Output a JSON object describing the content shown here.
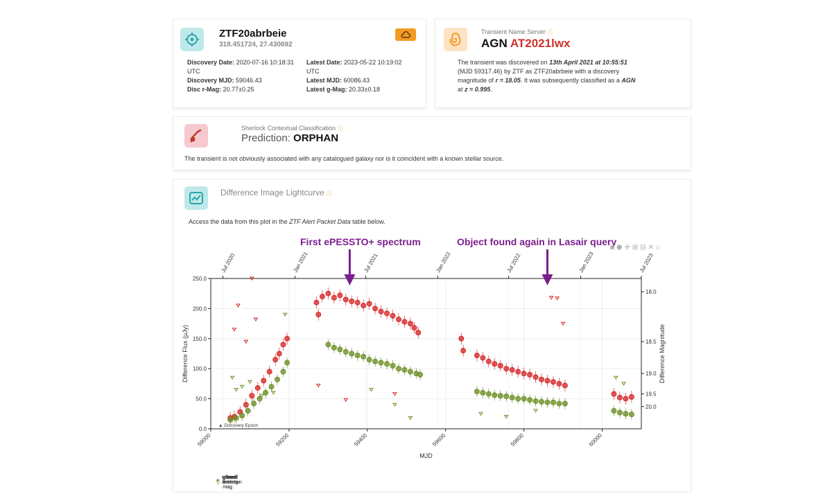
{
  "object": {
    "name": "ZTF20abrbeie",
    "coords": "318.451724, 27.430692",
    "disc_date_label": "Discovery Date:",
    "disc_date": "2020-07-16 10:18:31",
    "disc_date_tz": "UTC",
    "disc_mjd_label": "Discovery MJD:",
    "disc_mjd": "59046.43",
    "disc_mag_label": "Disc r-Mag:",
    "disc_mag": "20.77±0.25",
    "latest_date_label": "Latest Date:",
    "latest_date": "2023-05-22 10:19:02",
    "latest_date_tz": "UTC",
    "latest_mjd_label": "Latest MJD:",
    "latest_mjd": "60086.43",
    "latest_mag_label": "Latest g-Mag:",
    "latest_mag": "20.33±0.18"
  },
  "tns": {
    "header": "Transient Name Server",
    "type": "AGN",
    "name": "AT2021lwx",
    "p1": "The transient was discovered on",
    "date": "13th April 2021 at 10:55:51",
    "p2": "(MJD 59317.46) by ZTF as ZTF20abrbeie with a discovery",
    "p3": "magnitude of",
    "mag": "r = 18.05",
    "p4": ". It was subsequently classified as a",
    "cls": "AGN",
    "p5": "at",
    "z": "z = 0.995",
    "p6": "."
  },
  "sherlock": {
    "header": "Sherlock Contextual Classification",
    "prediction_label": "Prediction:",
    "prediction": "ORPHAN",
    "description": "The transient is not obviously associated with any catalogued galaxy nor is it coincident with a known stellar source."
  },
  "lightcurve": {
    "header": "Difference Image Lightcurve",
    "access_pre": "Access the data from this plot in the",
    "access_em": "ZTF Alert Packet Data",
    "access_post": "table below."
  },
  "annotations": {
    "first": "First ePESSTO+ spectrum",
    "found": "Object found again in Lasair query",
    "first_mjd": 59355,
    "found_mjd": 59860,
    "color": "#7b1e8e"
  },
  "colors": {
    "r": "#d62728",
    "g": "#6b8e23",
    "teal": "#2aa6a9",
    "orange": "#f29b22",
    "pink": "#c0392b"
  },
  "chart_data": {
    "type": "scatter",
    "xlabel": "MJD",
    "ylabel": "Difference Flux (μJy)",
    "y2label": "Difference Magnitude",
    "xlim": [
      59000,
      60100
    ],
    "ylim": [
      0,
      250
    ],
    "x_ticks": [
      59000,
      59200,
      59400,
      59600,
      59800,
      60000
    ],
    "y_ticks": [
      0,
      50,
      100,
      150,
      200,
      250
    ],
    "y_tick_labels": [
      "0.0",
      "50.0",
      "100.0",
      "150.0",
      "200.0",
      "250.0"
    ],
    "y2_ticks": [
      {
        "label": "18.0",
        "flux": 228
      },
      {
        "label": "18.5",
        "flux": 145
      },
      {
        "label": "19.0",
        "flux": 92
      },
      {
        "label": "19.5",
        "flux": 58
      },
      {
        "label": "20.0",
        "flux": 37
      }
    ],
    "date_ticks": [
      {
        "label": "Jul 2020",
        "mjd": 59031
      },
      {
        "label": "Jan 2021",
        "mjd": 59215
      },
      {
        "label": "Jul 2021",
        "mjd": 59396
      },
      {
        "label": "Jan 2022",
        "mjd": 59580
      },
      {
        "label": "Jul 2022",
        "mjd": 59761
      },
      {
        "label": "Jan 2023",
        "mjd": 59945
      },
      {
        "label": "Jul 2023",
        "mjd": 60126
      }
    ],
    "discovery_label": "Discovery Epoch",
    "discovery_mjd": 59046,
    "legend": [
      "r-band limiting mag",
      "r-band detection",
      "g-band limiting mag",
      "g-band detection"
    ],
    "series": [
      {
        "name": "r-band detection",
        "x": [
          59050,
          59060,
          59075,
          59090,
          59105,
          59120,
          59135,
          59150,
          59165,
          59175,
          59185,
          59195,
          59270,
          59275,
          59285,
          59300,
          59315,
          59330,
          59345,
          59360,
          59375,
          59390,
          59405,
          59420,
          59435,
          59450,
          59465,
          59480,
          59495,
          59510,
          59520,
          59530,
          59640,
          59645,
          59680,
          59695,
          59710,
          59725,
          59740,
          59755,
          59770,
          59785,
          59800,
          59815,
          59830,
          59845,
          59860,
          59875,
          59890,
          59905,
          60030,
          60045,
          60060,
          60075
        ],
        "y": [
          18,
          20,
          28,
          40,
          55,
          68,
          80,
          95,
          115,
          125,
          140,
          150,
          210,
          190,
          220,
          225,
          218,
          222,
          215,
          212,
          210,
          205,
          208,
          200,
          195,
          192,
          188,
          182,
          178,
          175,
          168,
          160,
          150,
          130,
          122,
          118,
          112,
          108,
          105,
          100,
          98,
          95,
          92,
          90,
          86,
          82,
          80,
          78,
          75,
          72,
          58,
          52,
          50,
          53
        ]
      },
      {
        "name": "g-band detection",
        "x": [
          59050,
          59065,
          59080,
          59095,
          59110,
          59125,
          59140,
          59155,
          59170,
          59185,
          59195,
          59300,
          59315,
          59330,
          59345,
          59360,
          59375,
          59390,
          59405,
          59420,
          59435,
          59450,
          59465,
          59480,
          59495,
          59510,
          59525,
          59535,
          59680,
          59695,
          59710,
          59725,
          59740,
          59755,
          59770,
          59785,
          59800,
          59815,
          59830,
          59845,
          59860,
          59875,
          59890,
          59905,
          60030,
          60045,
          60060,
          60075
        ],
        "y": [
          15,
          18,
          22,
          30,
          42,
          50,
          60,
          70,
          82,
          95,
          110,
          140,
          135,
          132,
          128,
          125,
          122,
          120,
          115,
          112,
          110,
          108,
          105,
          100,
          98,
          95,
          92,
          90,
          62,
          60,
          58,
          56,
          55,
          54,
          52,
          50,
          50,
          48,
          46,
          45,
          44,
          44,
          42,
          42,
          30,
          27,
          25,
          24
        ]
      },
      {
        "name": "r-band limiting mag",
        "x": [
          59060,
          59070,
          59090,
          59105,
          59115,
          59275,
          59345,
          59470,
          59870,
          59885,
          59900
        ],
        "y": [
          165,
          205,
          145,
          250,
          182,
          72,
          48,
          58,
          218,
          217,
          175
        ]
      },
      {
        "name": "g-band limiting mag",
        "x": [
          59055,
          59065,
          59080,
          59100,
          59130,
          59160,
          59190,
          59410,
          59470,
          59510,
          59690,
          59755,
          59830,
          60035,
          60055
        ],
        "y": [
          85,
          65,
          70,
          78,
          55,
          60,
          190,
          65,
          40,
          18,
          25,
          20,
          30,
          85,
          75
        ]
      }
    ]
  }
}
